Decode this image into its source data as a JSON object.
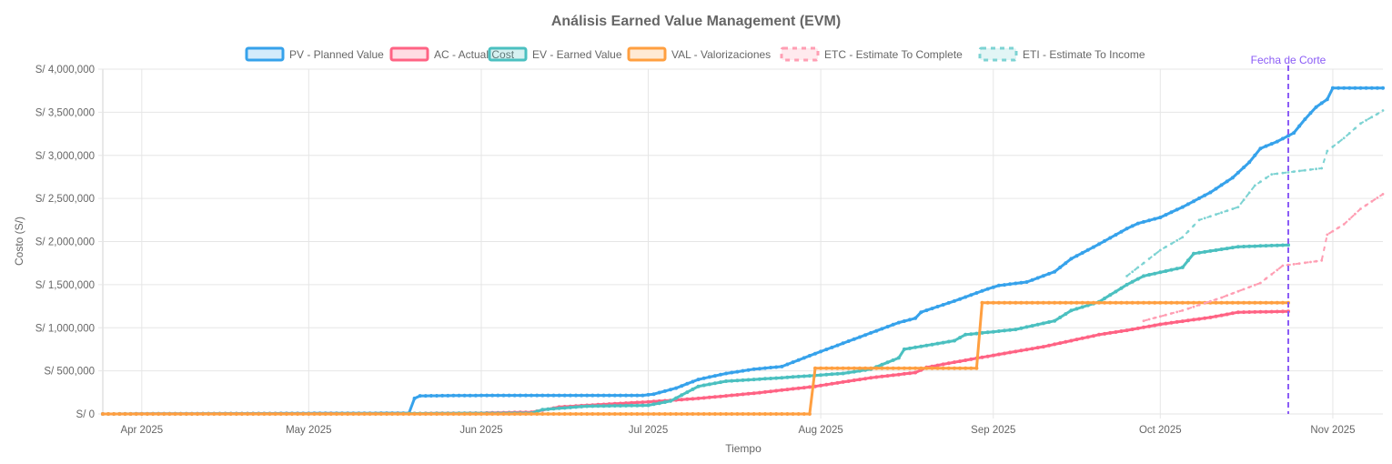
{
  "chart_data": {
    "type": "line",
    "title": "Análisis Earned Value Management (EVM)",
    "xlabel": "Tiempo",
    "ylabel": "Costo (S/)",
    "ylim": [
      0,
      4000000
    ],
    "xlim": [
      "2025-03-25",
      "2025-11-10"
    ],
    "grid": true,
    "legend_position": "top-center",
    "y_ticks": [
      {
        "value": 0,
        "label": "S/ 0"
      },
      {
        "value": 500000,
        "label": "S/ 500,000"
      },
      {
        "value": 1000000,
        "label": "S/ 1,000,000"
      },
      {
        "value": 1500000,
        "label": "S/ 1,500,000"
      },
      {
        "value": 2000000,
        "label": "S/ 2,000,000"
      },
      {
        "value": 2500000,
        "label": "S/ 2,500,000"
      },
      {
        "value": 3000000,
        "label": "S/ 3,000,000"
      },
      {
        "value": 3500000,
        "label": "S/ 3,500,000"
      },
      {
        "value": 4000000,
        "label": "S/ 4,000,000"
      }
    ],
    "x_ticks": [
      {
        "date": "2025-04-01",
        "label": "Apr 2025"
      },
      {
        "date": "2025-05-01",
        "label": "May 2025"
      },
      {
        "date": "2025-06-01",
        "label": "Jun 2025"
      },
      {
        "date": "2025-07-01",
        "label": "Jul 2025"
      },
      {
        "date": "2025-08-01",
        "label": "Aug 2025"
      },
      {
        "date": "2025-09-01",
        "label": "Sep 2025"
      },
      {
        "date": "2025-10-01",
        "label": "Oct 2025"
      },
      {
        "date": "2025-11-01",
        "label": "Nov 2025"
      }
    ],
    "cutoff": {
      "date": "2025-10-24",
      "label": "Fecha de Corte"
    },
    "series": [
      {
        "name": "PV - Planned Value",
        "color": "#36a2eb",
        "dashed": false,
        "points": [
          [
            "2025-03-25",
            0
          ],
          [
            "2025-05-19",
            10000
          ],
          [
            "2025-05-20",
            180000
          ],
          [
            "2025-05-21",
            210000
          ],
          [
            "2025-06-01",
            215000
          ],
          [
            "2025-06-15",
            215000
          ],
          [
            "2025-06-30",
            215000
          ],
          [
            "2025-07-02",
            230000
          ],
          [
            "2025-07-06",
            300000
          ],
          [
            "2025-07-10",
            400000
          ],
          [
            "2025-07-15",
            470000
          ],
          [
            "2025-07-20",
            520000
          ],
          [
            "2025-07-25",
            550000
          ],
          [
            "2025-07-31",
            700000
          ],
          [
            "2025-08-05",
            820000
          ],
          [
            "2025-08-10",
            940000
          ],
          [
            "2025-08-15",
            1060000
          ],
          [
            "2025-08-18",
            1110000
          ],
          [
            "2025-08-19",
            1180000
          ],
          [
            "2025-08-25",
            1310000
          ],
          [
            "2025-08-31",
            1450000
          ],
          [
            "2025-09-02",
            1490000
          ],
          [
            "2025-09-07",
            1530000
          ],
          [
            "2025-09-12",
            1650000
          ],
          [
            "2025-09-15",
            1800000
          ],
          [
            "2025-09-20",
            1970000
          ],
          [
            "2025-09-25",
            2150000
          ],
          [
            "2025-09-27",
            2210000
          ],
          [
            "2025-10-01",
            2280000
          ],
          [
            "2025-10-05",
            2400000
          ],
          [
            "2025-10-10",
            2570000
          ],
          [
            "2025-10-14",
            2740000
          ],
          [
            "2025-10-17",
            2920000
          ],
          [
            "2025-10-19",
            3080000
          ],
          [
            "2025-10-22",
            3160000
          ],
          [
            "2025-10-25",
            3260000
          ],
          [
            "2025-10-27",
            3420000
          ],
          [
            "2025-10-29",
            3560000
          ],
          [
            "2025-10-31",
            3650000
          ],
          [
            "2025-11-01",
            3780000
          ],
          [
            "2025-11-10",
            3780000
          ]
        ]
      },
      {
        "name": "AC - Actual Cost",
        "color": "#ff6384",
        "dashed": false,
        "points": [
          [
            "2025-03-25",
            0
          ],
          [
            "2025-05-19",
            5000
          ],
          [
            "2025-06-01",
            10000
          ],
          [
            "2025-06-10",
            20000
          ],
          [
            "2025-06-15",
            80000
          ],
          [
            "2025-06-20",
            100000
          ],
          [
            "2025-07-01",
            140000
          ],
          [
            "2025-07-10",
            180000
          ],
          [
            "2025-07-20",
            240000
          ],
          [
            "2025-07-31",
            320000
          ],
          [
            "2025-08-10",
            420000
          ],
          [
            "2025-08-18",
            480000
          ],
          [
            "2025-08-20",
            540000
          ],
          [
            "2025-08-25",
            600000
          ],
          [
            "2025-09-01",
            680000
          ],
          [
            "2025-09-10",
            780000
          ],
          [
            "2025-09-15",
            850000
          ],
          [
            "2025-09-20",
            920000
          ],
          [
            "2025-09-25",
            970000
          ],
          [
            "2025-10-01",
            1040000
          ],
          [
            "2025-10-10",
            1120000
          ],
          [
            "2025-10-15",
            1180000
          ],
          [
            "2025-10-24",
            1190000
          ]
        ]
      },
      {
        "name": "EV - Earned Value",
        "color": "#4bc0c0",
        "dashed": false,
        "points": [
          [
            "2025-03-25",
            0
          ],
          [
            "2025-05-20",
            5000
          ],
          [
            "2025-06-10",
            10000
          ],
          [
            "2025-06-12",
            50000
          ],
          [
            "2025-06-20",
            90000
          ],
          [
            "2025-07-01",
            100000
          ],
          [
            "2025-07-05",
            150000
          ],
          [
            "2025-07-10",
            320000
          ],
          [
            "2025-07-15",
            380000
          ],
          [
            "2025-07-25",
            420000
          ],
          [
            "2025-08-05",
            470000
          ],
          [
            "2025-08-10",
            520000
          ],
          [
            "2025-08-15",
            650000
          ],
          [
            "2025-08-16",
            750000
          ],
          [
            "2025-08-25",
            850000
          ],
          [
            "2025-08-27",
            920000
          ],
          [
            "2025-09-05",
            980000
          ],
          [
            "2025-09-12",
            1080000
          ],
          [
            "2025-09-15",
            1200000
          ],
          [
            "2025-09-20",
            1300000
          ],
          [
            "2025-09-25",
            1500000
          ],
          [
            "2025-09-28",
            1600000
          ],
          [
            "2025-10-05",
            1700000
          ],
          [
            "2025-10-07",
            1860000
          ],
          [
            "2025-10-15",
            1940000
          ],
          [
            "2025-10-24",
            1960000
          ]
        ]
      },
      {
        "name": "VAL - Valorizaciones",
        "color": "#ff9f40",
        "dashed": false,
        "points": [
          [
            "2025-03-25",
            0
          ],
          [
            "2025-07-30",
            0
          ],
          [
            "2025-07-31",
            530000
          ],
          [
            "2025-08-29",
            530000
          ],
          [
            "2025-08-30",
            1290000
          ],
          [
            "2025-10-24",
            1290000
          ]
        ]
      },
      {
        "name": "ETC - Estimate To Complete",
        "color": "#ff9eb3",
        "dashed": true,
        "points": [
          [
            "2025-09-28",
            1080000
          ],
          [
            "2025-10-05",
            1200000
          ],
          [
            "2025-10-12",
            1350000
          ],
          [
            "2025-10-19",
            1520000
          ],
          [
            "2025-10-23",
            1720000
          ],
          [
            "2025-10-30",
            1780000
          ],
          [
            "2025-10-31",
            2080000
          ],
          [
            "2025-11-03",
            2200000
          ],
          [
            "2025-11-06",
            2380000
          ],
          [
            "2025-11-10",
            2550000
          ]
        ]
      },
      {
        "name": "ETI - Estimate To Income",
        "color": "#7dd3d3",
        "dashed": true,
        "points": [
          [
            "2025-09-25",
            1600000
          ],
          [
            "2025-10-01",
            1900000
          ],
          [
            "2025-10-05",
            2050000
          ],
          [
            "2025-10-08",
            2250000
          ],
          [
            "2025-10-15",
            2400000
          ],
          [
            "2025-10-18",
            2650000
          ],
          [
            "2025-10-21",
            2780000
          ],
          [
            "2025-10-30",
            2850000
          ],
          [
            "2025-10-31",
            3050000
          ],
          [
            "2025-11-03",
            3200000
          ],
          [
            "2025-11-06",
            3370000
          ],
          [
            "2025-11-09",
            3480000
          ],
          [
            "2025-11-10",
            3520000
          ]
        ]
      }
    ]
  }
}
